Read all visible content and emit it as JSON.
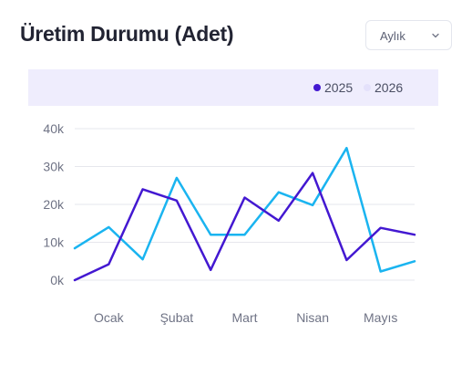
{
  "title": "Üretim Durumu (Adet)",
  "period_select": {
    "value": "Aylık",
    "icon": "chevron-down-icon"
  },
  "chart_data": {
    "type": "line",
    "title": "Üretim Durumu (Adet)",
    "xlabel": "",
    "ylabel": "",
    "ylim": [
      0,
      40000
    ],
    "y_ticks": [
      {
        "value": 0,
        "label": "0k"
      },
      {
        "value": 10000,
        "label": "10k"
      },
      {
        "value": 20000,
        "label": "20k"
      },
      {
        "value": 30000,
        "label": "30k"
      },
      {
        "value": 40000,
        "label": "40k"
      }
    ],
    "x_ticks": [
      {
        "index": 1,
        "label": "Ocak"
      },
      {
        "index": 3,
        "label": "Şubat"
      },
      {
        "index": 5,
        "label": "Mart"
      },
      {
        "index": 7,
        "label": "Nisan"
      },
      {
        "index": 9,
        "label": "Mayıs"
      }
    ],
    "grid": true,
    "legend_position": "top-right",
    "series": [
      {
        "name": "2025",
        "color": "#4318d1",
        "values": [
          0,
          4200,
          24000,
          21000,
          2700,
          21800,
          15700,
          28300,
          5300,
          13800,
          12000
        ]
      },
      {
        "name": "2026",
        "color": "#1ab4f0",
        "values": [
          8400,
          14000,
          5500,
          27000,
          12000,
          12000,
          23200,
          19800,
          34900,
          2300,
          5000
        ]
      }
    ]
  }
}
